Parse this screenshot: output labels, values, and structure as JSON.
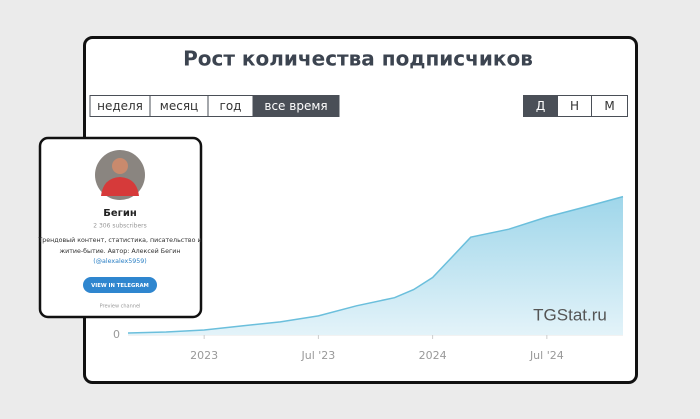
{
  "chart_data": {
    "type": "area",
    "title": "Рост количества подписчиков",
    "x": [
      "2022-09",
      "2022-11",
      "2023-01",
      "2023-03",
      "2023-05",
      "2023-07",
      "2023-09",
      "2023-11",
      "2023-12",
      "2024-01",
      "2024-02",
      "2024-03",
      "2024-05",
      "2024-07",
      "2024-09",
      "2024-11"
    ],
    "values": [
      34,
      50,
      84,
      151,
      218,
      319,
      487,
      622,
      756,
      958,
      1294,
      1630,
      1764,
      1966,
      2134,
      2306
    ],
    "color": "#6bbfdc",
    "xlim": [
      "2022-09",
      "2024-11"
    ],
    "xticks": [
      {
        "value": "2023-01",
        "label": "2023"
      },
      {
        "value": "2023-07",
        "label": "Jul '23"
      },
      {
        "value": "2024-01",
        "label": "2024"
      },
      {
        "value": "2024-07",
        "label": "Jul '24"
      }
    ],
    "ylim": [
      0,
      3500
    ],
    "yticks": [
      0
    ],
    "watermark": "TGStat.ru"
  },
  "range_buttons": [
    {
      "label": "неделя",
      "active": false
    },
    {
      "label": "месяц",
      "active": false
    },
    {
      "label": "год",
      "active": false
    },
    {
      "label": "все время",
      "active": true
    }
  ],
  "period_buttons": [
    {
      "label": "Д",
      "active": true
    },
    {
      "label": "Н",
      "active": false
    },
    {
      "label": "М",
      "active": false
    }
  ],
  "channel_card": {
    "name": "Бегин",
    "subscribers": "2 306 subscribers",
    "description": [
      "Трендовый контент, статистика, писательство и",
      "житие-бытие. Автор: Алексей Бегин"
    ],
    "handle": "(@alexalex5959)",
    "button": "VIEW IN TELEGRAM",
    "preview": "Preview channel"
  }
}
